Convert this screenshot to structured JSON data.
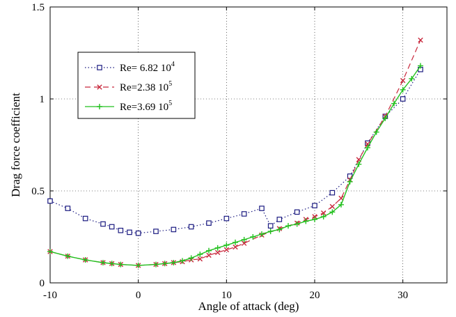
{
  "chart_data": {
    "type": "line",
    "title": "",
    "xlabel": "Angle of attack (deg)",
    "ylabel": "Drag force coefficient",
    "xlim": [
      -10,
      35
    ],
    "ylim": [
      0,
      1.5
    ],
    "xticks": [
      -10,
      0,
      10,
      20,
      30
    ],
    "yticks": [
      0,
      0.5,
      1,
      1.5
    ],
    "xtick_labels": [
      "-10",
      "0",
      "10",
      "20",
      "30"
    ],
    "ytick_labels": [
      "0",
      "0.5",
      "1",
      "1.5"
    ],
    "grid": true,
    "legend_position": "upper-left",
    "series": [
      {
        "name": "Re= 6.82 10",
        "name_exponent": "4",
        "color": "#1a1a80",
        "line_style": "dotted",
        "marker": "square",
        "x": [
          -10,
          -8,
          -6,
          -4,
          -3,
          -2,
          -1,
          0,
          2,
          4,
          6,
          8,
          10,
          12,
          14,
          15,
          16,
          18,
          20,
          22,
          24,
          26,
          28,
          30,
          32
        ],
        "y": [
          0.445,
          0.405,
          0.35,
          0.32,
          0.305,
          0.285,
          0.275,
          0.27,
          0.28,
          0.29,
          0.305,
          0.325,
          0.35,
          0.375,
          0.405,
          0.31,
          0.345,
          0.385,
          0.42,
          0.49,
          0.58,
          0.76,
          0.905,
          1.0,
          1.16
        ]
      },
      {
        "name": "Re=2.38 10",
        "name_exponent": "5",
        "color": "#c8283c",
        "line_style": "dashed",
        "marker": "x",
        "x": [
          -10,
          -8,
          -6,
          -4,
          -3,
          -2,
          0,
          2,
          3,
          4,
          5,
          6,
          7,
          8,
          9,
          10,
          11,
          12,
          14,
          16,
          18,
          19,
          20,
          21,
          22,
          23,
          24,
          25,
          26,
          28,
          30,
          32
        ],
        "y": [
          0.17,
          0.145,
          0.125,
          0.11,
          0.105,
          0.1,
          0.095,
          0.1,
          0.105,
          0.11,
          0.115,
          0.125,
          0.13,
          0.15,
          0.165,
          0.18,
          0.195,
          0.215,
          0.26,
          0.295,
          0.325,
          0.345,
          0.36,
          0.38,
          0.415,
          0.46,
          0.56,
          0.67,
          0.755,
          0.905,
          1.1,
          1.32
        ]
      },
      {
        "name": "Re=3.69 10",
        "name_exponent": "5",
        "color": "#22c01e",
        "line_style": "solid",
        "marker": "plus",
        "x": [
          -10,
          -8,
          -6,
          -4,
          -3,
          -2,
          0,
          2,
          3,
          4,
          5,
          6,
          7,
          8,
          9,
          10,
          11,
          12,
          13,
          14,
          15,
          16,
          17,
          18,
          19,
          20,
          21,
          22,
          23,
          24,
          25,
          26,
          27,
          28,
          29,
          30,
          31,
          32
        ],
        "y": [
          0.17,
          0.145,
          0.125,
          0.11,
          0.105,
          0.1,
          0.095,
          0.1,
          0.105,
          0.11,
          0.12,
          0.135,
          0.155,
          0.175,
          0.19,
          0.205,
          0.22,
          0.235,
          0.25,
          0.265,
          0.28,
          0.29,
          0.31,
          0.32,
          0.335,
          0.345,
          0.36,
          0.385,
          0.425,
          0.55,
          0.645,
          0.735,
          0.82,
          0.895,
          0.975,
          1.05,
          1.11,
          1.18
        ]
      }
    ]
  }
}
